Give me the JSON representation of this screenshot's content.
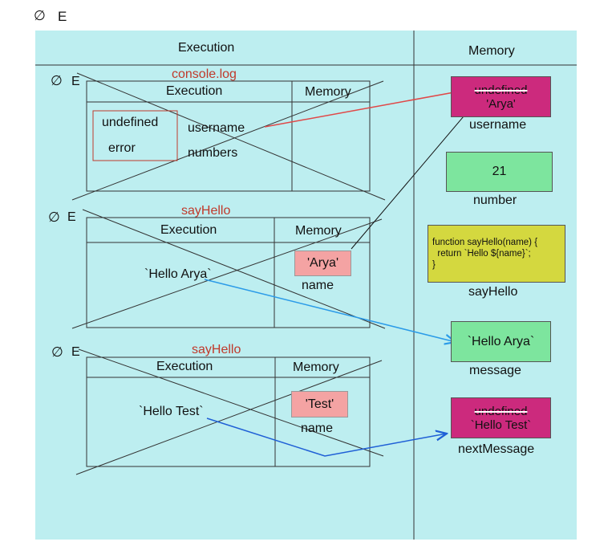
{
  "top_label": "E",
  "panel": {
    "execution_header": "Execution",
    "memory_header": "Memory"
  },
  "frames": [
    {
      "label": "E",
      "title": "console.log",
      "execution_header": "Execution",
      "memory_header": "Memory",
      "values": [
        "undefined",
        "error"
      ],
      "identifiers": [
        "username",
        "numbers"
      ]
    },
    {
      "label": "E",
      "title": "sayHello",
      "execution_header": "Execution",
      "memory_header": "Memory",
      "expression": "`Hello Arya`",
      "memory_value": "'Arya'",
      "memory_name": "name"
    },
    {
      "label": "E",
      "title": "sayHello",
      "execution_header": "Execution",
      "memory_header": "Memory",
      "expression": "`Hello Test`",
      "memory_value": "'Test'",
      "memory_name": "name"
    }
  ],
  "memory": [
    {
      "old_value": "undefined",
      "value": "'Arya'",
      "name": "username",
      "color": "#cc2a7d"
    },
    {
      "value": "21",
      "name": "number",
      "color": "#7de59e"
    },
    {
      "value": "function sayHello(name) {\n  return `Hello ${name}`;\n}",
      "name": "sayHello",
      "color": "#d4d83f"
    },
    {
      "value": "`Hello Arya`",
      "name": "message",
      "color": "#7de59e"
    },
    {
      "old_value": "undefined",
      "value": "`Hello Test`",
      "name": "nextMessage",
      "color": "#cc2a7d"
    }
  ],
  "colors": {
    "panel_bg": "#bdeef0",
    "title_red": "#c0392b",
    "arrow_red": "#e04848",
    "arrow_blue": "#2b9be8",
    "arrow_dark_blue": "#1f5fd6",
    "param_box": "#f4a3a3"
  }
}
